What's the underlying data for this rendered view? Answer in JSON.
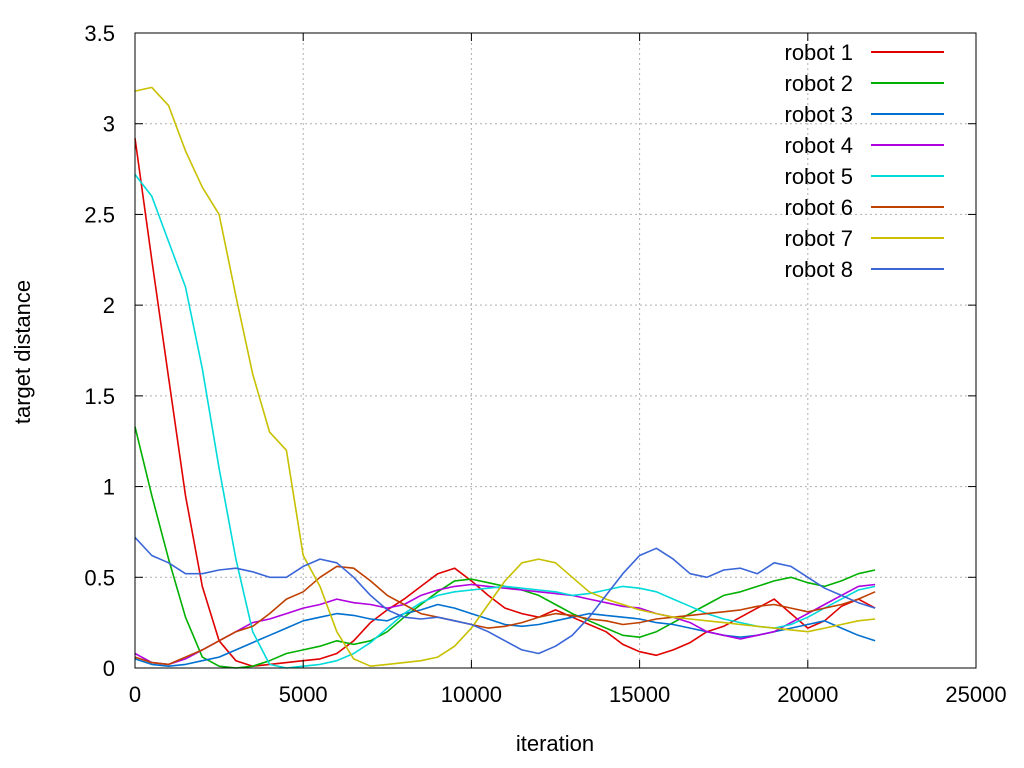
{
  "chart_data": {
    "type": "line",
    "title": "",
    "xlabel": "iteration",
    "ylabel": "target distance",
    "xlim": [
      0,
      25000
    ],
    "ylim": [
      0,
      3.5
    ],
    "xticks": [
      0,
      5000,
      10000,
      15000,
      20000,
      25000
    ],
    "xtick_labels": [
      "0",
      "5000",
      "10000",
      "15000",
      "20000",
      "25000"
    ],
    "yticks": [
      0,
      0.5,
      1,
      1.5,
      2,
      2.5,
      3,
      3.5
    ],
    "ytick_labels": [
      "0",
      "0.5",
      "1",
      "1.5",
      "2",
      "2.5",
      "3",
      "3.5"
    ],
    "grid": true,
    "legend_position": "top-right",
    "x": [
      0,
      500,
      1000,
      1500,
      2000,
      2500,
      3000,
      3500,
      4000,
      4500,
      5000,
      5500,
      6000,
      6500,
      7000,
      7500,
      8000,
      8500,
      9000,
      9500,
      10000,
      10500,
      11000,
      11500,
      12000,
      12500,
      13000,
      13500,
      14000,
      14500,
      15000,
      15500,
      16000,
      16500,
      17000,
      17500,
      18000,
      18500,
      19000,
      19500,
      20000,
      20500,
      21000,
      21500,
      22000
    ],
    "series": [
      {
        "name": "robot 1",
        "color": "#e00000",
        "values": [
          2.92,
          2.25,
          1.6,
          0.95,
          0.45,
          0.15,
          0.04,
          0.01,
          0.02,
          0.03,
          0.04,
          0.05,
          0.08,
          0.15,
          0.25,
          0.32,
          0.38,
          0.45,
          0.52,
          0.55,
          0.48,
          0.4,
          0.33,
          0.3,
          0.28,
          0.32,
          0.28,
          0.24,
          0.2,
          0.13,
          0.09,
          0.07,
          0.1,
          0.14,
          0.2,
          0.23,
          0.28,
          0.33,
          0.38,
          0.3,
          0.22,
          0.26,
          0.34,
          0.38,
          0.33
        ]
      },
      {
        "name": "robot 2",
        "color": "#00b000",
        "values": [
          1.33,
          0.95,
          0.6,
          0.28,
          0.06,
          0.01,
          0.0,
          0.01,
          0.04,
          0.08,
          0.1,
          0.12,
          0.15,
          0.13,
          0.15,
          0.2,
          0.28,
          0.35,
          0.42,
          0.48,
          0.49,
          0.47,
          0.45,
          0.43,
          0.4,
          0.35,
          0.3,
          0.26,
          0.22,
          0.18,
          0.17,
          0.2,
          0.25,
          0.3,
          0.35,
          0.4,
          0.42,
          0.45,
          0.48,
          0.5,
          0.47,
          0.45,
          0.48,
          0.52,
          0.54
        ]
      },
      {
        "name": "robot 3",
        "color": "#0070d0",
        "values": [
          0.05,
          0.02,
          0.01,
          0.02,
          0.04,
          0.06,
          0.1,
          0.14,
          0.18,
          0.22,
          0.26,
          0.28,
          0.3,
          0.29,
          0.27,
          0.26,
          0.3,
          0.32,
          0.35,
          0.33,
          0.3,
          0.27,
          0.24,
          0.23,
          0.24,
          0.26,
          0.28,
          0.3,
          0.29,
          0.28,
          0.27,
          0.25,
          0.24,
          0.22,
          0.2,
          0.18,
          0.17,
          0.18,
          0.2,
          0.22,
          0.24,
          0.26,
          0.22,
          0.18,
          0.15
        ]
      },
      {
        "name": "robot 4",
        "color": "#b000e0",
        "values": [
          0.08,
          0.03,
          0.02,
          0.05,
          0.1,
          0.15,
          0.2,
          0.25,
          0.27,
          0.3,
          0.33,
          0.35,
          0.38,
          0.36,
          0.35,
          0.33,
          0.35,
          0.4,
          0.43,
          0.45,
          0.46,
          0.45,
          0.44,
          0.43,
          0.42,
          0.41,
          0.4,
          0.38,
          0.36,
          0.34,
          0.33,
          0.3,
          0.28,
          0.25,
          0.2,
          0.18,
          0.16,
          0.18,
          0.2,
          0.25,
          0.3,
          0.35,
          0.4,
          0.45,
          0.46
        ]
      },
      {
        "name": "robot 5",
        "color": "#00dada",
        "values": [
          2.72,
          2.6,
          2.35,
          2.1,
          1.65,
          1.1,
          0.6,
          0.2,
          0.02,
          0.0,
          0.01,
          0.02,
          0.04,
          0.08,
          0.14,
          0.22,
          0.3,
          0.36,
          0.4,
          0.42,
          0.43,
          0.44,
          0.45,
          0.44,
          0.43,
          0.42,
          0.4,
          0.41,
          0.43,
          0.45,
          0.44,
          0.42,
          0.38,
          0.34,
          0.3,
          0.27,
          0.25,
          0.23,
          0.22,
          0.24,
          0.28,
          0.33,
          0.38,
          0.43,
          0.45
        ]
      },
      {
        "name": "robot 6",
        "color": "#c04000",
        "values": [
          0.06,
          0.03,
          0.02,
          0.06,
          0.1,
          0.15,
          0.2,
          0.23,
          0.3,
          0.38,
          0.42,
          0.5,
          0.56,
          0.55,
          0.48,
          0.4,
          0.35,
          0.3,
          0.28,
          0.26,
          0.24,
          0.22,
          0.23,
          0.25,
          0.28,
          0.3,
          0.29,
          0.27,
          0.26,
          0.24,
          0.25,
          0.27,
          0.28,
          0.29,
          0.3,
          0.31,
          0.32,
          0.34,
          0.35,
          0.33,
          0.31,
          0.33,
          0.35,
          0.38,
          0.42
        ]
      },
      {
        "name": "robot 7",
        "color": "#c8c000",
        "values": [
          3.18,
          3.2,
          3.1,
          2.85,
          2.65,
          2.5,
          2.05,
          1.62,
          1.3,
          1.2,
          0.62,
          0.45,
          0.2,
          0.05,
          0.01,
          0.02,
          0.03,
          0.04,
          0.06,
          0.12,
          0.22,
          0.35,
          0.48,
          0.58,
          0.6,
          0.58,
          0.5,
          0.42,
          0.38,
          0.35,
          0.32,
          0.3,
          0.28,
          0.27,
          0.26,
          0.25,
          0.24,
          0.23,
          0.22,
          0.21,
          0.2,
          0.22,
          0.24,
          0.26,
          0.27
        ]
      },
      {
        "name": "robot 8",
        "color": "#3a66d8",
        "values": [
          0.72,
          0.62,
          0.58,
          0.52,
          0.52,
          0.54,
          0.55,
          0.53,
          0.5,
          0.5,
          0.56,
          0.6,
          0.58,
          0.5,
          0.4,
          0.32,
          0.28,
          0.27,
          0.28,
          0.26,
          0.24,
          0.2,
          0.15,
          0.1,
          0.08,
          0.12,
          0.18,
          0.28,
          0.4,
          0.52,
          0.62,
          0.66,
          0.6,
          0.52,
          0.5,
          0.54,
          0.55,
          0.52,
          0.58,
          0.56,
          0.5,
          0.44,
          0.4,
          0.36,
          0.33
        ]
      }
    ]
  }
}
